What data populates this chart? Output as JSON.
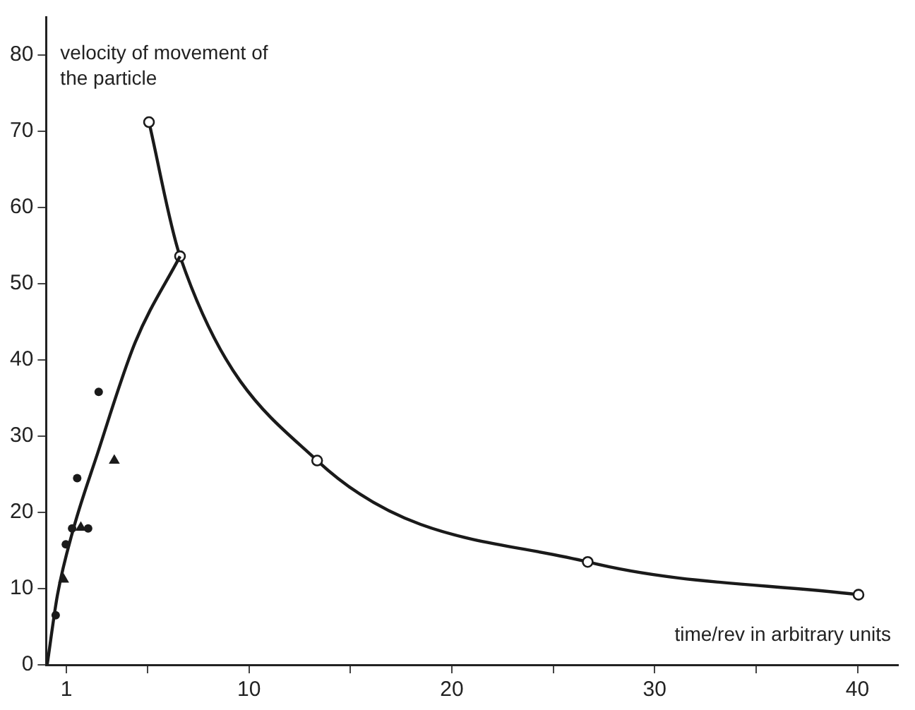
{
  "chart_data": {
    "type": "line",
    "ylabel": "velocity of movement of the particle",
    "xlabel": "time/rev in arbitrary units",
    "xlim": [
      0,
      42
    ],
    "ylim": [
      0,
      85
    ],
    "xticks": [
      1,
      {
        "value": 5,
        "label": null
      },
      10,
      {
        "value": 15,
        "label": null
      },
      20,
      {
        "value": 25,
        "label": null
      },
      30,
      {
        "value": 35,
        "label": null
      },
      40
    ],
    "yticks": [
      0,
      10,
      20,
      30,
      40,
      50,
      60,
      70,
      80
    ],
    "grid": false,
    "legend": false,
    "series": [
      {
        "type": "line",
        "marker": "none",
        "color": "#1a1a1a",
        "x": [
          0.05,
          0.56,
          1.35,
          2.48,
          4.39,
          6.6
        ],
        "values": [
          0,
          9.2,
          17.9,
          27.3,
          42.3,
          53.6
        ]
      },
      {
        "type": "scatter",
        "marker": "circle",
        "color": "#1a1a1a",
        "x": [
          0.47,
          0.97,
          1.28,
          2.07,
          1.53,
          2.59
        ],
        "values": [
          6.5,
          15.8,
          17.9,
          17.9,
          24.5,
          35.8
        ]
      },
      {
        "type": "scatter",
        "marker": "triangle",
        "color": "#1a1a1a",
        "x": [
          0.86,
          1.71,
          3.36
        ],
        "values": [
          11.2,
          18.0,
          26.8
        ]
      },
      {
        "type": "line",
        "marker": "circle",
        "color": "#1a1a1a",
        "x": [
          5.07,
          6.6,
          13.36,
          26.7,
          40.05
        ],
        "values": [
          71.2,
          53.6,
          26.8,
          13.5,
          9.2
        ]
      }
    ]
  }
}
